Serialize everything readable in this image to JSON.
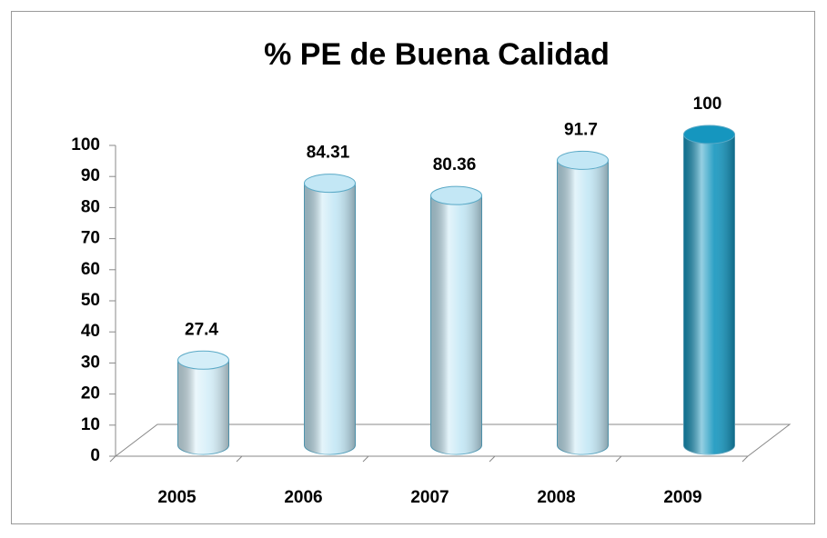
{
  "chart_data": {
    "type": "bar3d",
    "title": "% PE de Buena Calidad",
    "categories": [
      "2005",
      "2006",
      "2007",
      "2008",
      "2009"
    ],
    "values": [
      27.4,
      84.31,
      80.36,
      91.7,
      100
    ],
    "colors": [
      "#d4eef8",
      "#c3e7f5",
      "#c3e7f5",
      "#c3e7f5",
      "#1596bf"
    ],
    "ylim": [
      0,
      100
    ],
    "yticks": [
      0,
      10,
      20,
      30,
      40,
      50,
      60,
      70,
      80,
      90,
      100
    ]
  }
}
